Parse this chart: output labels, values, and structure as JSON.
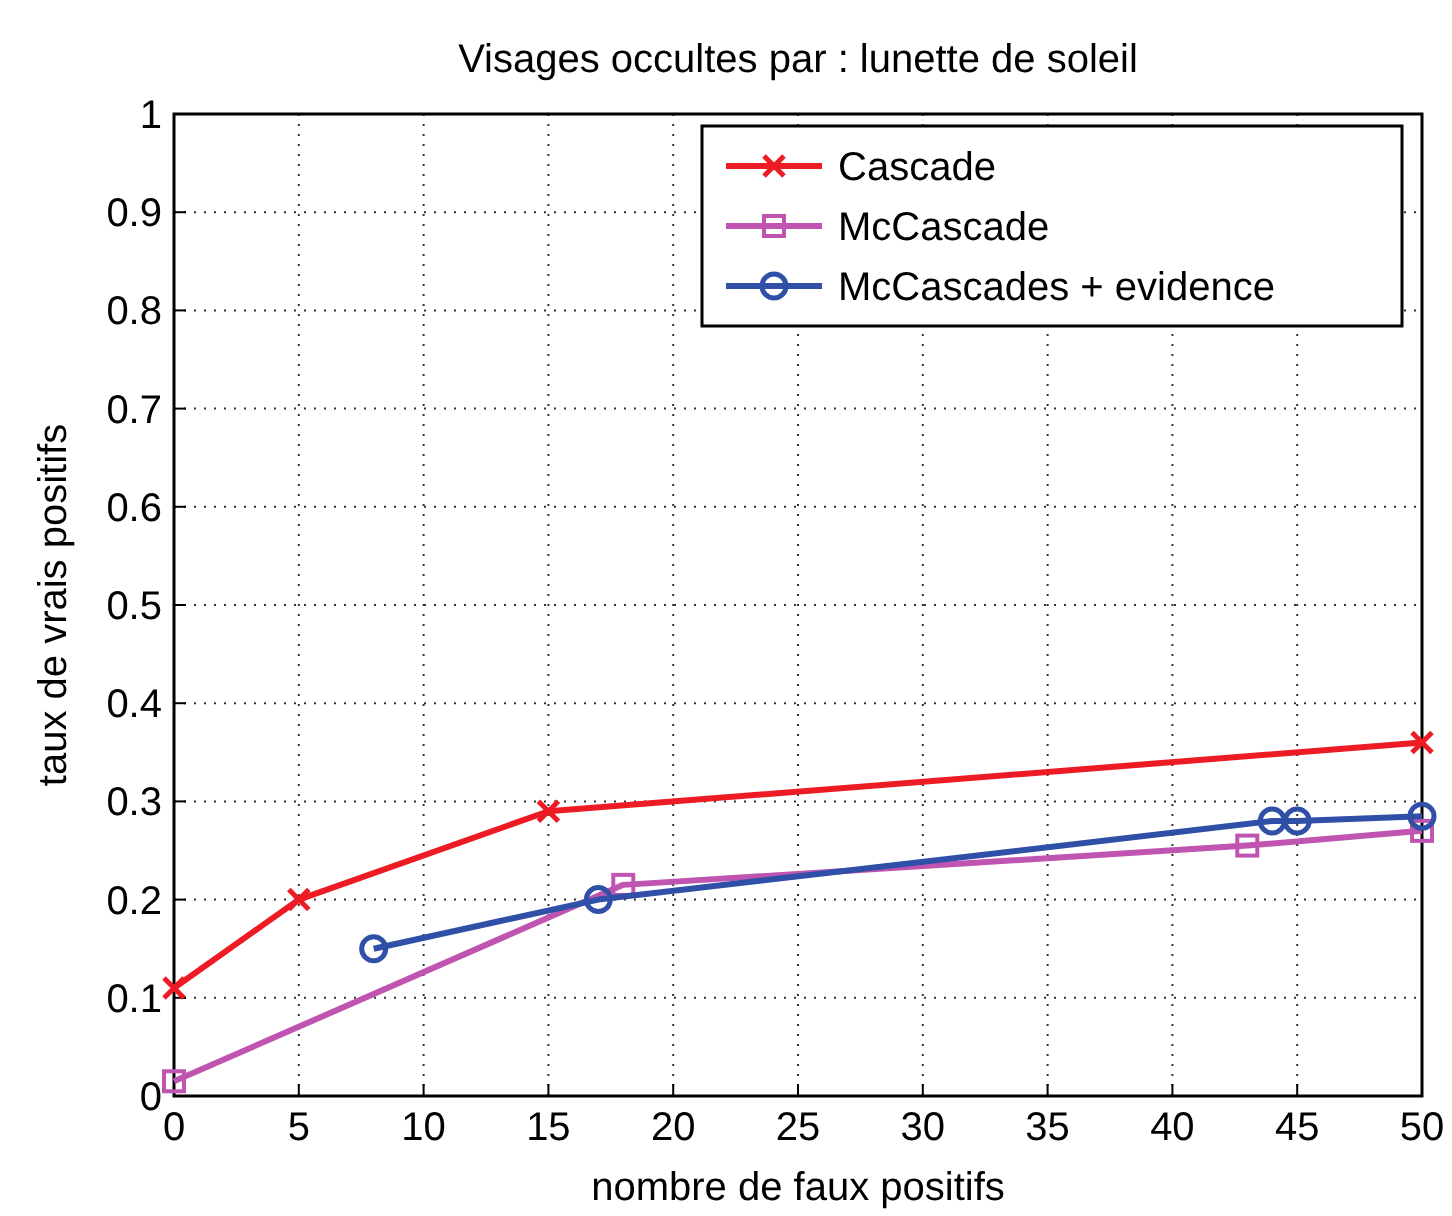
{
  "chart_data": {
    "type": "line",
    "title": "Visages occultes par : lunette de soleil",
    "xlabel": "nombre de faux positifs",
    "ylabel": "taux de vrais positifs",
    "xlim": [
      0,
      50
    ],
    "ylim": [
      0,
      1
    ],
    "xticks": [
      0,
      5,
      10,
      15,
      20,
      25,
      30,
      35,
      40,
      45,
      50
    ],
    "yticks": [
      0,
      0.1,
      0.2,
      0.3,
      0.4,
      0.5,
      0.6,
      0.7,
      0.8,
      0.9,
      1
    ],
    "grid": true,
    "legend": "top right",
    "line_style": "solid",
    "series": [
      {
        "name": "Cascade",
        "color": "#ed1c24",
        "marker": "cross",
        "x": [
          0,
          5,
          15,
          50
        ],
        "values": [
          0.11,
          0.2,
          0.29,
          0.36
        ]
      },
      {
        "name": "McCascade",
        "color": "#bf55b0",
        "marker": "square",
        "x": [
          0,
          18,
          43,
          50
        ],
        "values": [
          0.015,
          0.215,
          0.255,
          0.27
        ]
      },
      {
        "name": "McCascades + evidence",
        "color": "#3050a8",
        "marker": "circle",
        "x": [
          8,
          17,
          44,
          45,
          50
        ],
        "values": [
          0.15,
          0.2,
          0.28,
          0.28,
          0.285
        ]
      }
    ]
  }
}
